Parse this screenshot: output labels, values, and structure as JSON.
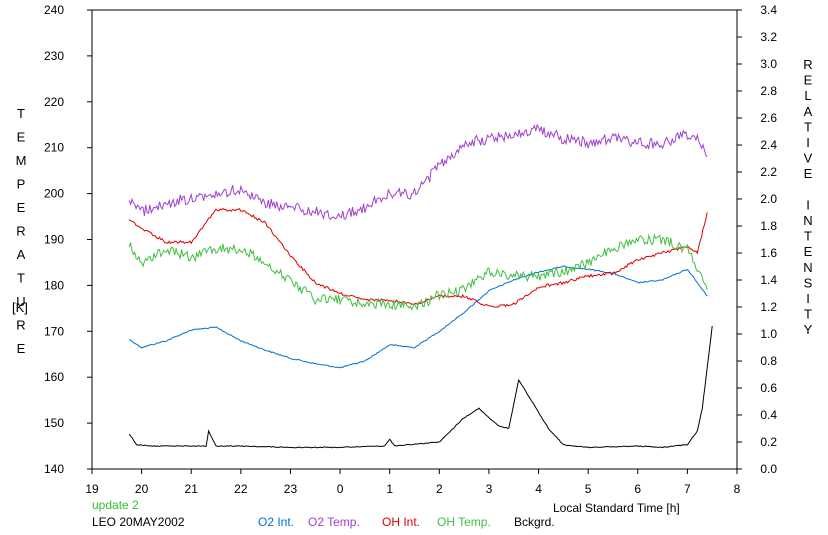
{
  "chart_data": {
    "type": "line",
    "left_axis_label": "TEMPERATURE",
    "left_axis_unit": "[K]",
    "right_axis_label": "RELATIVE INTENSITY",
    "xlabel": "Local Standard Time [h]",
    "xlim": [
      19,
      32
    ],
    "ylim_left": [
      140,
      240
    ],
    "ylim_right": [
      0,
      3.4
    ],
    "x_ticks": [
      19,
      20,
      21,
      22,
      23,
      24,
      25,
      26,
      27,
      28,
      29,
      30,
      31,
      32
    ],
    "x_tick_labels": [
      "19",
      "20",
      "21",
      "22",
      "23",
      "0",
      "1",
      "2",
      "3",
      "4",
      "5",
      "6",
      "7",
      "8"
    ],
    "y_left_ticks": [
      140,
      150,
      160,
      170,
      180,
      190,
      200,
      210,
      220,
      230,
      240
    ],
    "y_right_ticks": [
      "0.0",
      "0.2",
      "0.4",
      "0.6",
      "0.8",
      "1.0",
      "1.2",
      "1.4",
      "1.6",
      "1.8",
      "2.0",
      "2.2",
      "2.4",
      "2.6",
      "2.8",
      "3.0",
      "3.2",
      "3.4"
    ],
    "grid": false,
    "series": [
      {
        "name": "O2 Int.",
        "axis": "right",
        "color": "#0070d0",
        "x": [
          19.75,
          20.0,
          20.5,
          21.0,
          21.5,
          22.0,
          22.5,
          23.0,
          23.5,
          24.0,
          24.5,
          25.0,
          25.5,
          26.0,
          26.5,
          27.0,
          27.5,
          28.0,
          28.5,
          29.0,
          29.5,
          30.0,
          30.5,
          31.0,
          31.2,
          31.4
        ],
        "y": [
          0.96,
          0.9,
          0.95,
          1.03,
          1.05,
          0.95,
          0.88,
          0.82,
          0.78,
          0.75,
          0.8,
          0.92,
          0.9,
          1.02,
          1.16,
          1.32,
          1.4,
          1.46,
          1.5,
          1.48,
          1.45,
          1.38,
          1.4,
          1.48,
          1.38,
          1.28
        ]
      },
      {
        "name": "O2 Temp.",
        "axis": "left",
        "color": "#a040d0",
        "x": [
          19.75,
          20.0,
          20.5,
          21.0,
          21.5,
          22.0,
          22.5,
          23.0,
          23.5,
          24.0,
          24.5,
          25.0,
          25.5,
          26.0,
          26.5,
          27.0,
          27.5,
          28.0,
          28.5,
          29.0,
          29.5,
          30.0,
          30.5,
          31.0,
          31.2,
          31.4
        ],
        "y": [
          199,
          196,
          198,
          199,
          200,
          201,
          198,
          197,
          196,
          195,
          197,
          200,
          200,
          206,
          211,
          212,
          213,
          214,
          212,
          211,
          212,
          211,
          211,
          213,
          212,
          208
        ]
      },
      {
        "name": "OH Int.",
        "axis": "right",
        "color": "#e00000",
        "x": [
          19.75,
          20.0,
          20.5,
          21.0,
          21.5,
          22.0,
          22.5,
          23.0,
          23.5,
          24.0,
          24.5,
          25.0,
          25.5,
          26.0,
          26.5,
          27.0,
          27.5,
          28.0,
          28.5,
          29.0,
          29.5,
          30.0,
          30.5,
          31.0,
          31.2,
          31.4
        ],
        "y": [
          1.85,
          1.78,
          1.68,
          1.68,
          1.92,
          1.92,
          1.82,
          1.58,
          1.38,
          1.3,
          1.25,
          1.25,
          1.22,
          1.28,
          1.28,
          1.2,
          1.22,
          1.35,
          1.38,
          1.43,
          1.45,
          1.55,
          1.6,
          1.65,
          1.6,
          1.9
        ]
      },
      {
        "name": "OH Temp.",
        "axis": "left",
        "color": "#40c040",
        "x": [
          19.75,
          20.0,
          20.5,
          21.0,
          21.5,
          22.0,
          22.5,
          23.0,
          23.5,
          24.0,
          24.5,
          25.0,
          25.5,
          26.0,
          26.5,
          27.0,
          27.5,
          28.0,
          28.5,
          29.0,
          29.5,
          30.0,
          30.5,
          31.0,
          31.2,
          31.4
        ],
        "y": [
          189,
          185,
          188,
          186,
          188,
          188,
          185,
          181,
          177,
          177,
          176,
          176,
          175,
          178,
          179,
          183,
          182,
          182,
          183,
          185,
          188,
          190,
          190,
          188,
          184,
          179
        ]
      },
      {
        "name": "Bckgrd.",
        "axis": "right",
        "color": "#000000",
        "x": [
          19.75,
          19.9,
          20.2,
          20.8,
          21.3,
          21.35,
          21.5,
          22.0,
          23.0,
          24.0,
          24.9,
          25.0,
          25.1,
          26.0,
          26.5,
          26.8,
          27.0,
          27.2,
          27.4,
          27.6,
          28.0,
          28.2,
          28.5,
          29.0,
          30.0,
          30.5,
          31.0,
          31.2,
          31.3,
          31.4,
          31.5
        ],
        "y": [
          0.26,
          0.18,
          0.17,
          0.17,
          0.17,
          0.28,
          0.17,
          0.17,
          0.16,
          0.16,
          0.17,
          0.22,
          0.17,
          0.2,
          0.38,
          0.45,
          0.38,
          0.32,
          0.3,
          0.66,
          0.42,
          0.3,
          0.18,
          0.16,
          0.17,
          0.16,
          0.18,
          0.28,
          0.45,
          0.75,
          1.06
        ]
      }
    ]
  },
  "footer": {
    "update_label": "update 2",
    "station_label": "LEO 20MAY2002",
    "colors": {
      "update": "#30c030",
      "station": "#000000"
    }
  }
}
